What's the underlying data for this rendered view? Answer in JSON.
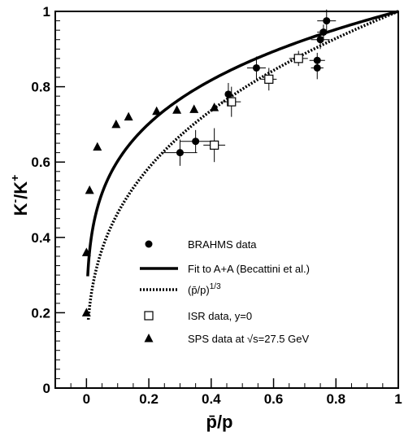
{
  "chart_data": {
    "type": "scatter",
    "xlabel": "p̄/p",
    "ylabel": "K⁻/K⁺",
    "xlim": [
      -0.1,
      1.0
    ],
    "ylim": [
      0.0,
      1.0
    ],
    "xticks": [
      "0",
      "0.2",
      "0.4",
      "0.6",
      "0.8",
      "1"
    ],
    "yticks": [
      "0",
      "0.2",
      "0.4",
      "0.6",
      "0.8",
      "1"
    ],
    "legend_placement": "lower-right",
    "series": [
      {
        "name": "BRAHMS data",
        "marker": "filled-circle",
        "points": [
          {
            "x": 0.3,
            "y": 0.625,
            "xerr": 0.055,
            "yerr": 0.035
          },
          {
            "x": 0.35,
            "y": 0.655,
            "xerr": 0.05,
            "yerr": 0.03
          },
          {
            "x": 0.455,
            "y": 0.78,
            "xerr": 0.01,
            "yerr": 0.03
          },
          {
            "x": 0.545,
            "y": 0.85,
            "xerr": 0.03,
            "yerr": 0.03
          },
          {
            "x": 0.74,
            "y": 0.87,
            "xerr": 0.025,
            "yerr": 0.02
          },
          {
            "x": 0.74,
            "y": 0.85,
            "xerr": 0.02,
            "yerr": 0.03
          },
          {
            "x": 0.75,
            "y": 0.925,
            "xerr": 0.03,
            "yerr": 0.025
          },
          {
            "x": 0.76,
            "y": 0.945,
            "xerr": 0.02,
            "yerr": 0.02
          },
          {
            "x": 0.77,
            "y": 0.975,
            "xerr": 0.03,
            "yerr": 0.03
          }
        ]
      },
      {
        "name": "Fit to A+A (Becattini et al.)",
        "style": "solid-thick",
        "curve": "p^0.22"
      },
      {
        "name": "(p̄/p)^1/3",
        "style": "dotted-thick",
        "curve": "p^(1/3)"
      },
      {
        "name": "ISR data, y=0",
        "marker": "open-square",
        "points": [
          {
            "x": 0.41,
            "y": 0.645,
            "xerr": 0.035,
            "yerr": 0.045
          },
          {
            "x": 0.465,
            "y": 0.76,
            "xerr": 0.03,
            "yerr": 0.04
          },
          {
            "x": 0.585,
            "y": 0.82,
            "xerr": 0.025,
            "yerr": 0.03
          },
          {
            "x": 0.68,
            "y": 0.875,
            "xerr": 0.03,
            "yerr": 0.02
          }
        ]
      },
      {
        "name": "SPS data at √s=27.5 GeV",
        "marker": "filled-triangle",
        "points": [
          {
            "x": 0.0,
            "y": 0.2
          },
          {
            "x": 0.0,
            "y": 0.36
          },
          {
            "x": 0.01,
            "y": 0.525
          },
          {
            "x": 0.035,
            "y": 0.64
          },
          {
            "x": 0.095,
            "y": 0.7
          },
          {
            "x": 0.135,
            "y": 0.72
          },
          {
            "x": 0.225,
            "y": 0.735
          },
          {
            "x": 0.29,
            "y": 0.738
          },
          {
            "x": 0.345,
            "y": 0.74
          },
          {
            "x": 0.41,
            "y": 0.745
          }
        ]
      }
    ],
    "legend": {
      "brahms": "BRAHMS data",
      "fit": "Fit to A+A (Becattini et al.)",
      "power_base": "(p̄/p)",
      "power_exp": "1/3",
      "isr": "ISR data, y=0",
      "sps_prefix": "SPS data at ",
      "sps_sqrt": "√s",
      "sps_suffix": "=27.5 GeV"
    }
  }
}
